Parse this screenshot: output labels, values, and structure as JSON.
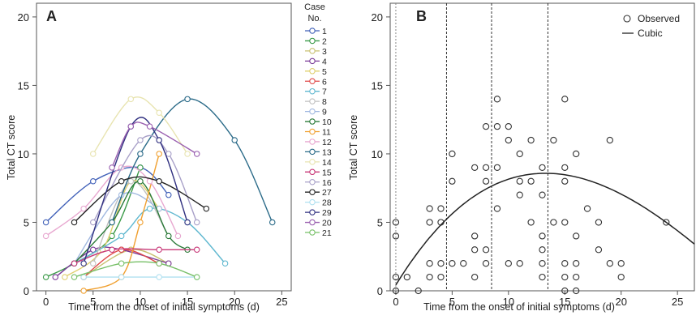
{
  "chart_data": [
    {
      "panel": "A",
      "type": "line",
      "xlabel": "Time from the onset of initial symptoms (d)",
      "ylabel": "Total CT score",
      "xlim": [
        -1,
        26
      ],
      "ylim": [
        0,
        21
      ],
      "xticks": [
        "0",
        "5",
        "10",
        "15",
        "20",
        "25"
      ],
      "yticks": [
        "0",
        "5",
        "10",
        "15",
        "20"
      ],
      "legend_title_line1": "Case",
      "legend_title_line2": "No.",
      "legend_position": "right-outside",
      "series": [
        {
          "name": "1",
          "color": "#4060b8",
          "x": [
            0,
            5,
            10,
            13
          ],
          "y": [
            5,
            8,
            9,
            7
          ]
        },
        {
          "name": "2",
          "color": "#3a9a48",
          "x": [
            0,
            3,
            7,
            10
          ],
          "y": [
            1,
            2,
            4,
            9
          ]
        },
        {
          "name": "3",
          "color": "#c8c070",
          "x": [
            4,
            9,
            13
          ],
          "y": [
            1,
            3,
            2
          ]
        },
        {
          "name": "4",
          "color": "#7a3a98",
          "x": [
            1,
            5,
            8,
            13
          ],
          "y": [
            1,
            3,
            3,
            2
          ]
        },
        {
          "name": "5",
          "color": "#e0d070",
          "x": [
            2,
            6,
            9,
            12
          ],
          "y": [
            1,
            3,
            8,
            6
          ]
        },
        {
          "name": "6",
          "color": "#e04848",
          "x": [
            4,
            8,
            12
          ],
          "y": [
            1,
            3,
            2
          ]
        },
        {
          "name": "7",
          "color": "#60b8d0",
          "x": [
            3,
            8,
            11,
            15,
            19
          ],
          "y": [
            2,
            4,
            6,
            5,
            2
          ]
        },
        {
          "name": "8",
          "color": "#c0c0c0",
          "x": [
            5,
            9,
            13
          ],
          "y": [
            2,
            8,
            4
          ]
        },
        {
          "name": "9",
          "color": "#a0b8e0",
          "x": [
            3,
            8,
            12
          ],
          "y": [
            2,
            7,
            6
          ]
        },
        {
          "name": "10",
          "color": "#2a7a38",
          "x": [
            3,
            7,
            10,
            13,
            15
          ],
          "y": [
            2,
            5,
            8,
            4,
            3
          ]
        },
        {
          "name": "11",
          "color": "#f0a030",
          "x": [
            4,
            8,
            10,
            12
          ],
          "y": [
            0,
            1,
            5,
            10
          ]
        },
        {
          "name": "12",
          "color": "#e8a8d0",
          "x": [
            0,
            4,
            8,
            11,
            14
          ],
          "y": [
            4,
            6,
            9,
            8,
            4
          ]
        },
        {
          "name": "13",
          "color": "#2a6a88",
          "x": [
            7,
            10,
            15,
            20,
            24
          ],
          "y": [
            5,
            10,
            14,
            11,
            5
          ]
        },
        {
          "name": "14",
          "color": "#e8e4b0",
          "x": [
            5,
            9,
            12,
            15
          ],
          "y": [
            10,
            14,
            13,
            10
          ]
        },
        {
          "name": "15",
          "color": "#c83878",
          "x": [
            3,
            7,
            12,
            16
          ],
          "y": [
            2,
            3,
            3,
            3
          ]
        },
        {
          "name": "16",
          "color": "#a8a0c8",
          "x": [
            5,
            10,
            13,
            16
          ],
          "y": [
            5,
            11,
            10,
            5
          ]
        },
        {
          "name": "27",
          "color": "#222222",
          "x": [
            3,
            8,
            12,
            17
          ],
          "y": [
            5,
            8,
            8,
            6
          ]
        },
        {
          "name": "28",
          "color": "#b0e0f0",
          "x": [
            4,
            8,
            12,
            16
          ],
          "y": [
            1,
            1,
            1,
            1
          ]
        },
        {
          "name": "29",
          "color": "#303080",
          "x": [
            4,
            9,
            12,
            15
          ],
          "y": [
            2,
            12,
            11,
            5
          ]
        },
        {
          "name": "20",
          "color": "#9a60b0",
          "x": [
            7,
            9,
            11,
            16
          ],
          "y": [
            9,
            12,
            12,
            10
          ]
        },
        {
          "name": "21",
          "color": "#78c068",
          "x": [
            3,
            8,
            12,
            16
          ],
          "y": [
            1,
            2,
            2,
            1
          ]
        }
      ]
    },
    {
      "panel": "B",
      "type": "scatter",
      "xlabel": "Time from the onset of initial symptoms (d)",
      "ylabel": "Total CT score",
      "xlim": [
        -0.5,
        26.5
      ],
      "ylim": [
        0,
        21
      ],
      "xticks": [
        "0",
        "5",
        "10",
        "15",
        "20",
        "25"
      ],
      "yticks": [
        "0",
        "5",
        "10",
        "15",
        "20"
      ],
      "legend_position": "top-right",
      "legend": [
        "Observed",
        "Cubic"
      ],
      "vertical_lines": [
        0,
        4.5,
        8.5,
        13.5
      ],
      "observed": [
        [
          0,
          0
        ],
        [
          0,
          1
        ],
        [
          0,
          4
        ],
        [
          0,
          5
        ],
        [
          1,
          1
        ],
        [
          2,
          0
        ],
        [
          3,
          1
        ],
        [
          3,
          2
        ],
        [
          3,
          5
        ],
        [
          3,
          6
        ],
        [
          4,
          1
        ],
        [
          4,
          2
        ],
        [
          4,
          5
        ],
        [
          4,
          6
        ],
        [
          5,
          2
        ],
        [
          5,
          8
        ],
        [
          5,
          10
        ],
        [
          6,
          2
        ],
        [
          7,
          1
        ],
        [
          7,
          3
        ],
        [
          7,
          4
        ],
        [
          7,
          9
        ],
        [
          8,
          2
        ],
        [
          8,
          3
        ],
        [
          8,
          8
        ],
        [
          8,
          9
        ],
        [
          8,
          12
        ],
        [
          9,
          6
        ],
        [
          9,
          9
        ],
        [
          9,
          12
        ],
        [
          9,
          14
        ],
        [
          10,
          2
        ],
        [
          10,
          11
        ],
        [
          10,
          12
        ],
        [
          11,
          2
        ],
        [
          11,
          7
        ],
        [
          11,
          8
        ],
        [
          11,
          10
        ],
        [
          12,
          5
        ],
        [
          12,
          8
        ],
        [
          12,
          11
        ],
        [
          13,
          1
        ],
        [
          13,
          2
        ],
        [
          13,
          3
        ],
        [
          13,
          4
        ],
        [
          13,
          7
        ],
        [
          13,
          9
        ],
        [
          14,
          5
        ],
        [
          14,
          11
        ],
        [
          15,
          0
        ],
        [
          15,
          1
        ],
        [
          15,
          2
        ],
        [
          15,
          5
        ],
        [
          15,
          8
        ],
        [
          15,
          9
        ],
        [
          15,
          14
        ],
        [
          16,
          0
        ],
        [
          16,
          1
        ],
        [
          16,
          2
        ],
        [
          16,
          4
        ],
        [
          16,
          10
        ],
        [
          17,
          6
        ],
        [
          18,
          3
        ],
        [
          18,
          5
        ],
        [
          19,
          2
        ],
        [
          19,
          11
        ],
        [
          20,
          1
        ],
        [
          20,
          2
        ],
        [
          24,
          5
        ]
      ],
      "cubic_coefficients": [
        0.42,
        1.34,
        -0.063,
        0.00063
      ]
    }
  ]
}
